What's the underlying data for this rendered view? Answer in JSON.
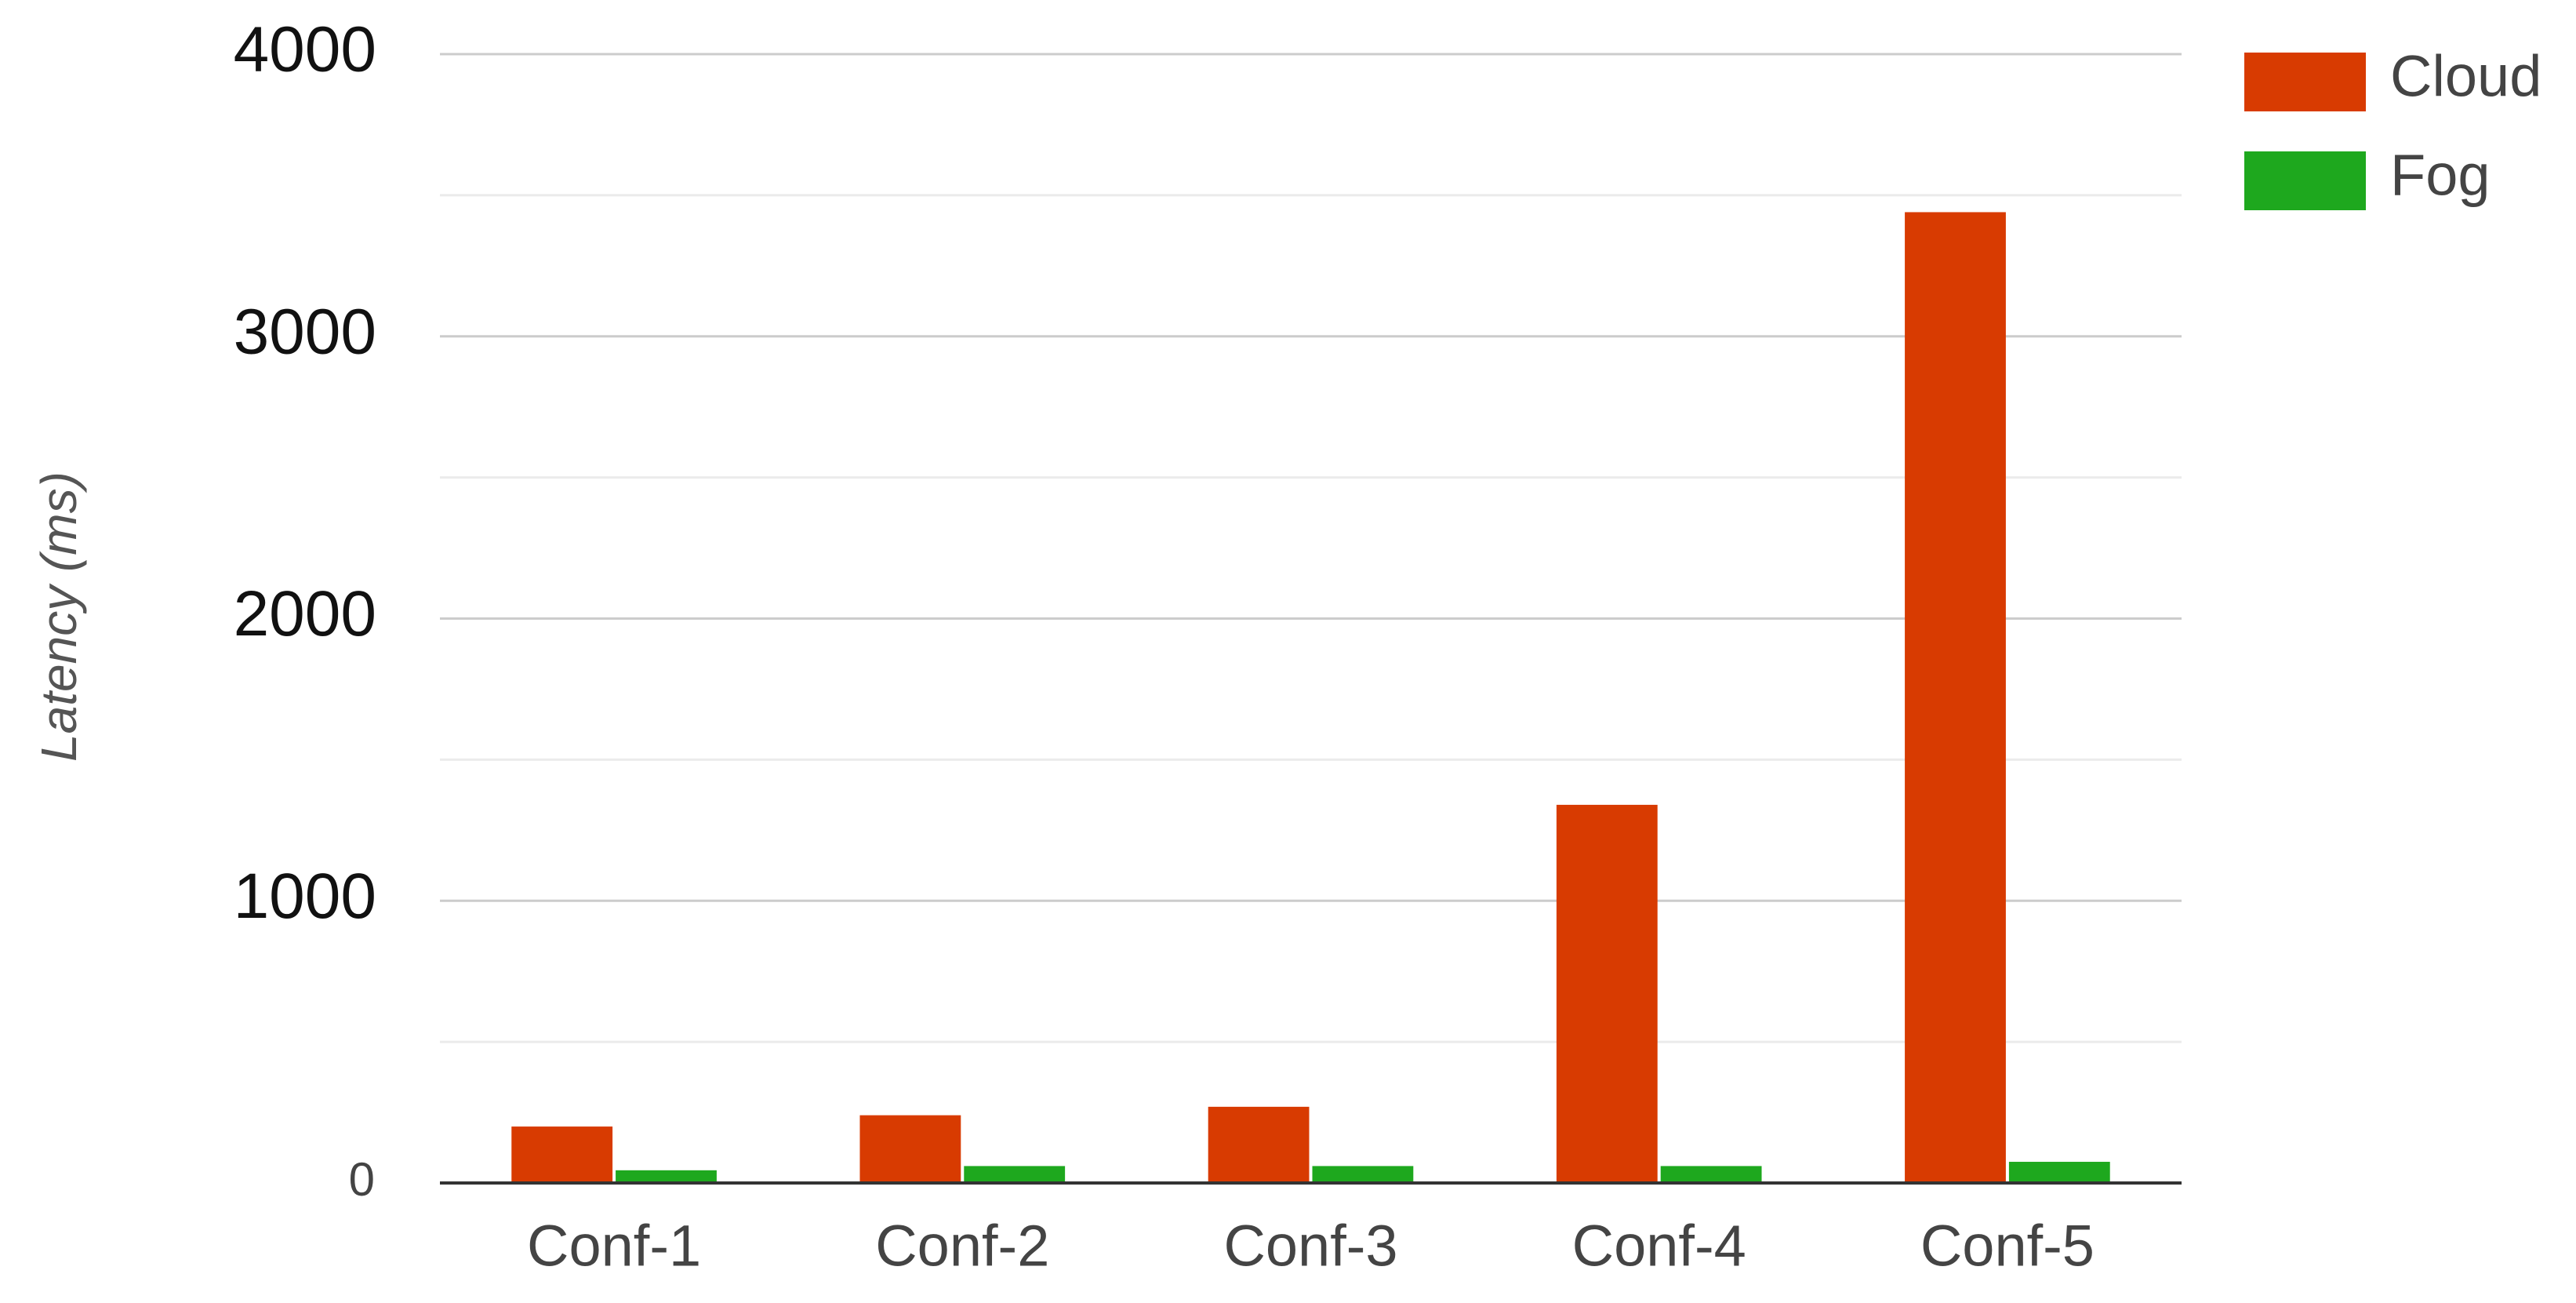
{
  "chart_data": {
    "type": "bar",
    "y_label": "Latency (ms)",
    "categories": [
      "Conf-1",
      "Conf-2",
      "Conf-3",
      "Conf-4",
      "Conf-5"
    ],
    "series": [
      {
        "name": "Cloud",
        "color": "#d83b01",
        "values": [
          200,
          240,
          270,
          1340,
          3440
        ]
      },
      {
        "name": "Fog",
        "color": "#1ea81e",
        "values": [
          45,
          60,
          60,
          60,
          75
        ]
      }
    ],
    "ylim": [
      0,
      4000
    ],
    "yticks": [
      0,
      1000,
      2000,
      3000,
      4000
    ],
    "minor_yticks": [
      500,
      1500,
      2500,
      3500
    ],
    "grid": true,
    "legend": "right"
  }
}
